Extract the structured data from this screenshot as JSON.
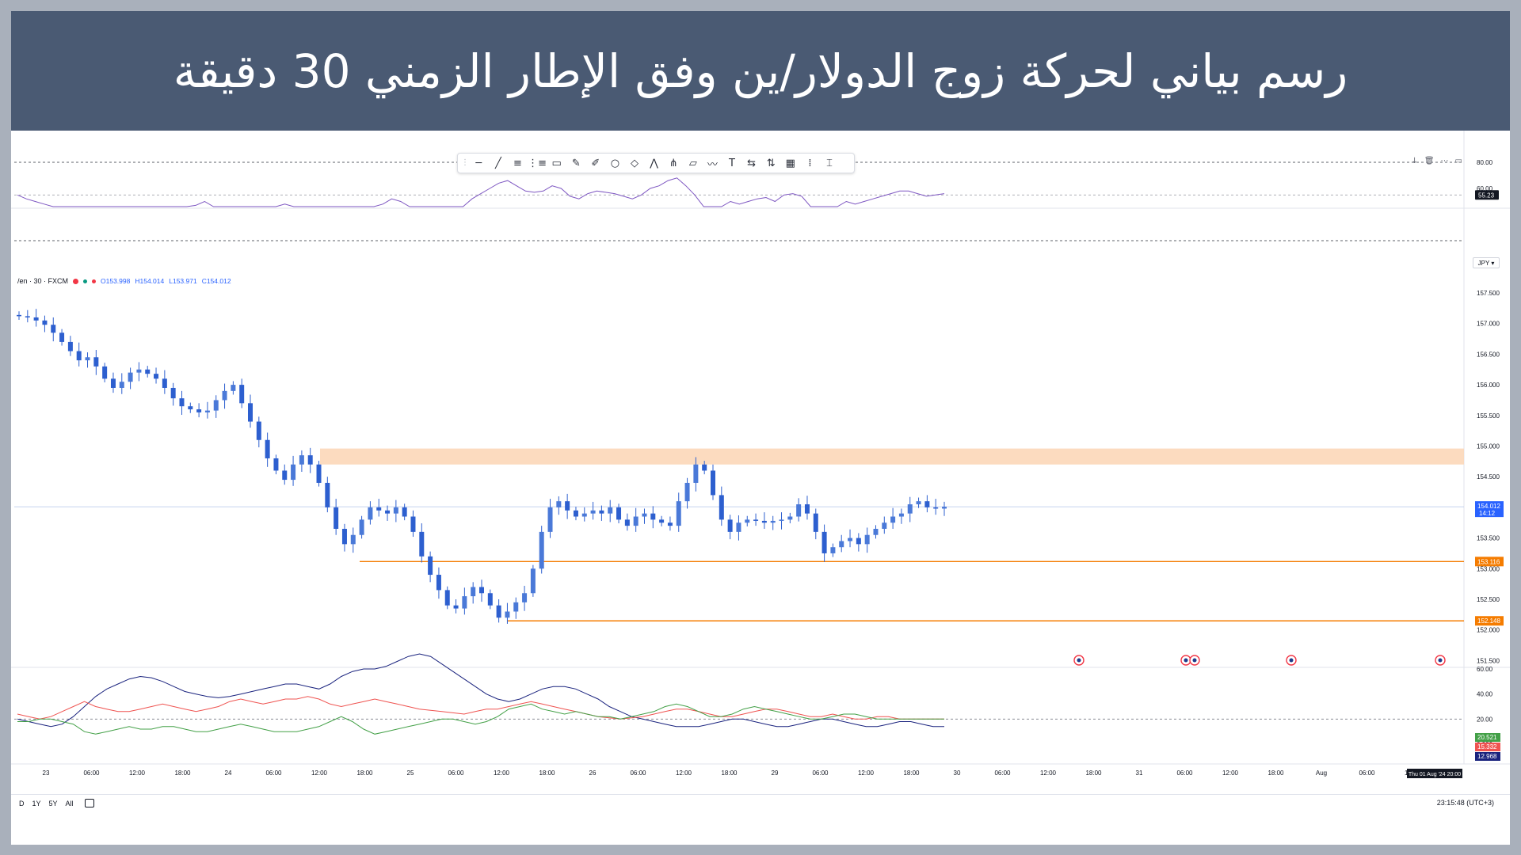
{
  "title": "رسم بياني لحركة زوج الدولار/ين وفق الإطار الزمني 30 دقيقة",
  "series_label": {
    "symbol": "/en · 30 · FXCM",
    "open": "O153.998",
    "high": "H154.014",
    "low": "L153.971",
    "close": "C154.012"
  },
  "toolbar_icons": [
    "horizontal-line-icon",
    "trend-line-icon",
    "parallel-channel-icon",
    "fib-icon",
    "rectangle-icon",
    "brush-icon",
    "pen-icon",
    "circle-icon",
    "diamond-icon",
    "pattern-icon",
    "pitchfork-icon",
    "callout-icon",
    "path-icon",
    "text-icon",
    "measure-icon",
    "long-position-icon",
    "table-icon",
    "vertical-line-icon",
    "cursor-icon"
  ],
  "currency": "JPY",
  "range_buttons": [
    "D",
    "1Y",
    "5Y",
    "All"
  ],
  "clock": "23:15:48 (UTC+3)",
  "crosshair_label": "Thu 01 Aug '24   20:00",
  "colors": {
    "candle_up": "#4a79d8",
    "candle_down": "#2d5fcf",
    "level_line": "#f57c00",
    "zone_fill": "#fcd7b8",
    "rsi_line": "#7e57c2",
    "adx_navy": "#1a237e",
    "di_plus": "#43a047",
    "di_minus": "#ef5350"
  },
  "chart_data": [
    {
      "type": "line",
      "name": "rsi-pane",
      "ylim": [
        0,
        80
      ],
      "y_ticks": [
        "80.00",
        "60.00",
        "40.00",
        "20.00"
      ],
      "dashed_levels": [
        80,
        55,
        20
      ],
      "last_value_label": "55.23",
      "series": [
        {
          "values": [
            55,
            52,
            50,
            48,
            42,
            38,
            30,
            28,
            34,
            36,
            40,
            46,
            44,
            38,
            35,
            40,
            36,
            32,
            36,
            40,
            47,
            50,
            44,
            38,
            34,
            30,
            28,
            33,
            38,
            42,
            48,
            44,
            40,
            36,
            30,
            27,
            24,
            23,
            26,
            34,
            44,
            48,
            52,
            50,
            46,
            40,
            34,
            30,
            26,
            36,
            44,
            52,
            56,
            60,
            64,
            66,
            62,
            58,
            57,
            58,
            62,
            60,
            54,
            52,
            56,
            58,
            57,
            56,
            54,
            52,
            55,
            60,
            62,
            66,
            68,
            62,
            55,
            46,
            44,
            46,
            50,
            48,
            50,
            52,
            53,
            50,
            55,
            56,
            54,
            44,
            40,
            42,
            46,
            50,
            48,
            50,
            52,
            54,
            56,
            58,
            58,
            56,
            54,
            55,
            56
          ]
        }
      ]
    },
    {
      "type": "bar",
      "name": "usd-jpy-candles",
      "ylim": [
        151.4,
        157.9
      ],
      "y_ticks": [
        "157.500",
        "157.000",
        "156.500",
        "156.000",
        "155.500",
        "155.000",
        "154.500",
        "154.000",
        "153.500",
        "153.000",
        "152.500",
        "152.000",
        "151.500"
      ],
      "x_ticks": [
        "23",
        "06:00",
        "12:00",
        "18:00",
        "24",
        "06:00",
        "12:00",
        "18:00",
        "25",
        "06:00",
        "12:00",
        "18:00",
        "26",
        "06:00",
        "12:00",
        "18:00",
        "29",
        "06:00",
        "12:00",
        "18:00",
        "30",
        "06:00",
        "12:00",
        "18:00",
        "31",
        "06:00",
        "12:00",
        "18:00",
        "Aug",
        "06:00",
        "12:00"
      ],
      "close_path": [
        157.12,
        157.1,
        157.05,
        156.98,
        156.85,
        156.7,
        156.55,
        156.4,
        156.45,
        156.3,
        156.1,
        155.95,
        156.05,
        156.2,
        156.25,
        156.18,
        156.1,
        155.95,
        155.78,
        155.65,
        155.6,
        155.55,
        155.58,
        155.75,
        155.9,
        156.0,
        155.7,
        155.4,
        155.1,
        154.8,
        154.6,
        154.45,
        154.7,
        154.85,
        154.7,
        154.4,
        154.0,
        153.65,
        153.4,
        153.55,
        153.8,
        154.0,
        153.95,
        153.9,
        154.0,
        153.85,
        153.6,
        153.2,
        152.9,
        152.65,
        152.4,
        152.35,
        152.55,
        152.7,
        152.6,
        152.4,
        152.2,
        152.3,
        152.45,
        152.6,
        153.0,
        153.6,
        154.0,
        154.1,
        153.95,
        153.85,
        153.9,
        153.95,
        153.9,
        154.0,
        153.8,
        153.7,
        153.85,
        153.9,
        153.8,
        153.75,
        153.7,
        154.1,
        154.4,
        154.7,
        154.6,
        154.2,
        153.8,
        153.6,
        153.75,
        153.8,
        153.78,
        153.75,
        153.78,
        153.8,
        153.85,
        154.05,
        153.9,
        153.6,
        153.25,
        153.35,
        153.45,
        153.5,
        153.4,
        153.55,
        153.65,
        153.75,
        153.85,
        153.9,
        154.05,
        154.1,
        154.0,
        153.98,
        154.01
      ],
      "resistance_zone": [
        154.7,
        154.96
      ],
      "support_levels": [
        {
          "value": 153.116,
          "label": "153.116"
        },
        {
          "value": 152.148,
          "label": "152.148"
        }
      ],
      "last_price_label": "154.012",
      "countdown_label": "14:12"
    },
    {
      "type": "line",
      "name": "dmi-pane",
      "ylim": [
        0,
        70
      ],
      "y_ticks": [
        "60.00",
        "40.00",
        "20.00",
        "0.000"
      ],
      "dashed_levels": [
        20
      ],
      "last_value_labels": [
        "20.521",
        "15.332",
        "12.968"
      ],
      "series": [
        {
          "values": [
            20,
            18,
            16,
            14,
            16,
            22,
            30,
            38,
            44,
            48,
            52,
            54,
            53,
            50,
            46,
            42,
            40,
            38,
            37,
            38,
            40,
            42,
            44,
            46,
            48,
            48,
            46,
            44,
            48,
            54,
            58,
            60,
            60,
            62,
            66,
            70,
            72,
            70,
            64,
            58,
            52,
            46,
            40,
            36,
            34,
            36,
            40,
            44,
            46,
            46,
            44,
            40,
            36,
            30,
            26,
            22,
            20,
            18,
            16,
            14,
            14,
            14,
            16,
            18,
            20,
            20,
            18,
            16,
            14,
            14,
            16,
            18,
            20,
            20,
            18,
            16,
            14,
            14,
            16,
            18,
            18,
            16,
            14,
            14
          ]
        },
        {
          "values": [
            24,
            22,
            20,
            22,
            26,
            30,
            34,
            30,
            28,
            26,
            26,
            28,
            30,
            32,
            30,
            28,
            26,
            28,
            30,
            34,
            36,
            34,
            32,
            34,
            36,
            36,
            38,
            36,
            32,
            30,
            32,
            34,
            36,
            34,
            32,
            30,
            28,
            27,
            26,
            25,
            24,
            26,
            28,
            28,
            30,
            32,
            34,
            32,
            30,
            28,
            26,
            24,
            22,
            21,
            20,
            21,
            22,
            24,
            26,
            28,
            28,
            26,
            24,
            22,
            22,
            24,
            26,
            28,
            28,
            26,
            24,
            22,
            22,
            24,
            22,
            20,
            20,
            22,
            22,
            20,
            20,
            20,
            20,
            20
          ]
        },
        {
          "values": [
            18,
            18,
            20,
            20,
            18,
            16,
            10,
            8,
            10,
            12,
            14,
            12,
            12,
            14,
            14,
            12,
            10,
            10,
            12,
            14,
            16,
            14,
            12,
            10,
            10,
            10,
            12,
            14,
            18,
            22,
            18,
            12,
            8,
            10,
            12,
            14,
            16,
            18,
            20,
            20,
            18,
            16,
            18,
            22,
            28,
            30,
            32,
            28,
            26,
            24,
            26,
            24,
            22,
            22,
            20,
            22,
            24,
            26,
            30,
            32,
            30,
            26,
            22,
            22,
            24,
            28,
            30,
            28,
            26,
            24,
            22,
            20,
            20,
            22,
            24,
            24,
            22,
            20,
            20,
            20,
            20,
            20,
            20,
            20
          ]
        }
      ]
    }
  ]
}
